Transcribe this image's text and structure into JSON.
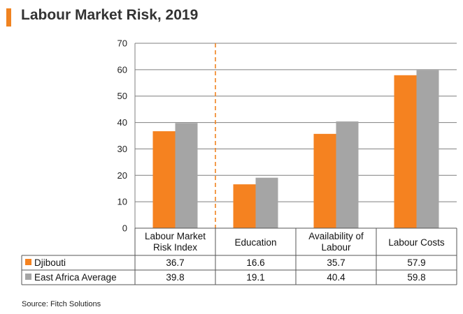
{
  "title": "Labour Market Risk, 2019",
  "source": "Source: Fitch Solutions",
  "colors": {
    "accent": "#F08321",
    "djibouti": "#F58220",
    "east_africa": "#A5A5A5",
    "divider": "#F08321",
    "grid": "#7F7F7F"
  },
  "chart_data": {
    "type": "bar",
    "categories": [
      "Labour Market\nRisk Index",
      "Education",
      "Availability of\nLabour",
      "Labour Costs"
    ],
    "series": [
      {
        "name": "Djibouti",
        "values": [
          36.7,
          16.6,
          35.7,
          57.9
        ]
      },
      {
        "name": "East Africa Average",
        "values": [
          39.8,
          19.1,
          40.4,
          59.8
        ]
      }
    ],
    "table": {
      "rows": [
        {
          "label": "Djibouti",
          "cells": [
            "36.7",
            "16.6",
            "35.7",
            "57.9"
          ]
        },
        {
          "label": "East Africa Average",
          "cells": [
            "39.8",
            "19.1",
            "40.4",
            "59.8"
          ]
        }
      ]
    },
    "yticks": [
      "0",
      "10",
      "20",
      "30",
      "40",
      "50",
      "60",
      "70"
    ],
    "ylim": [
      0,
      70
    ],
    "grid": true,
    "divider_after_category": 0,
    "legend": "data-table"
  }
}
